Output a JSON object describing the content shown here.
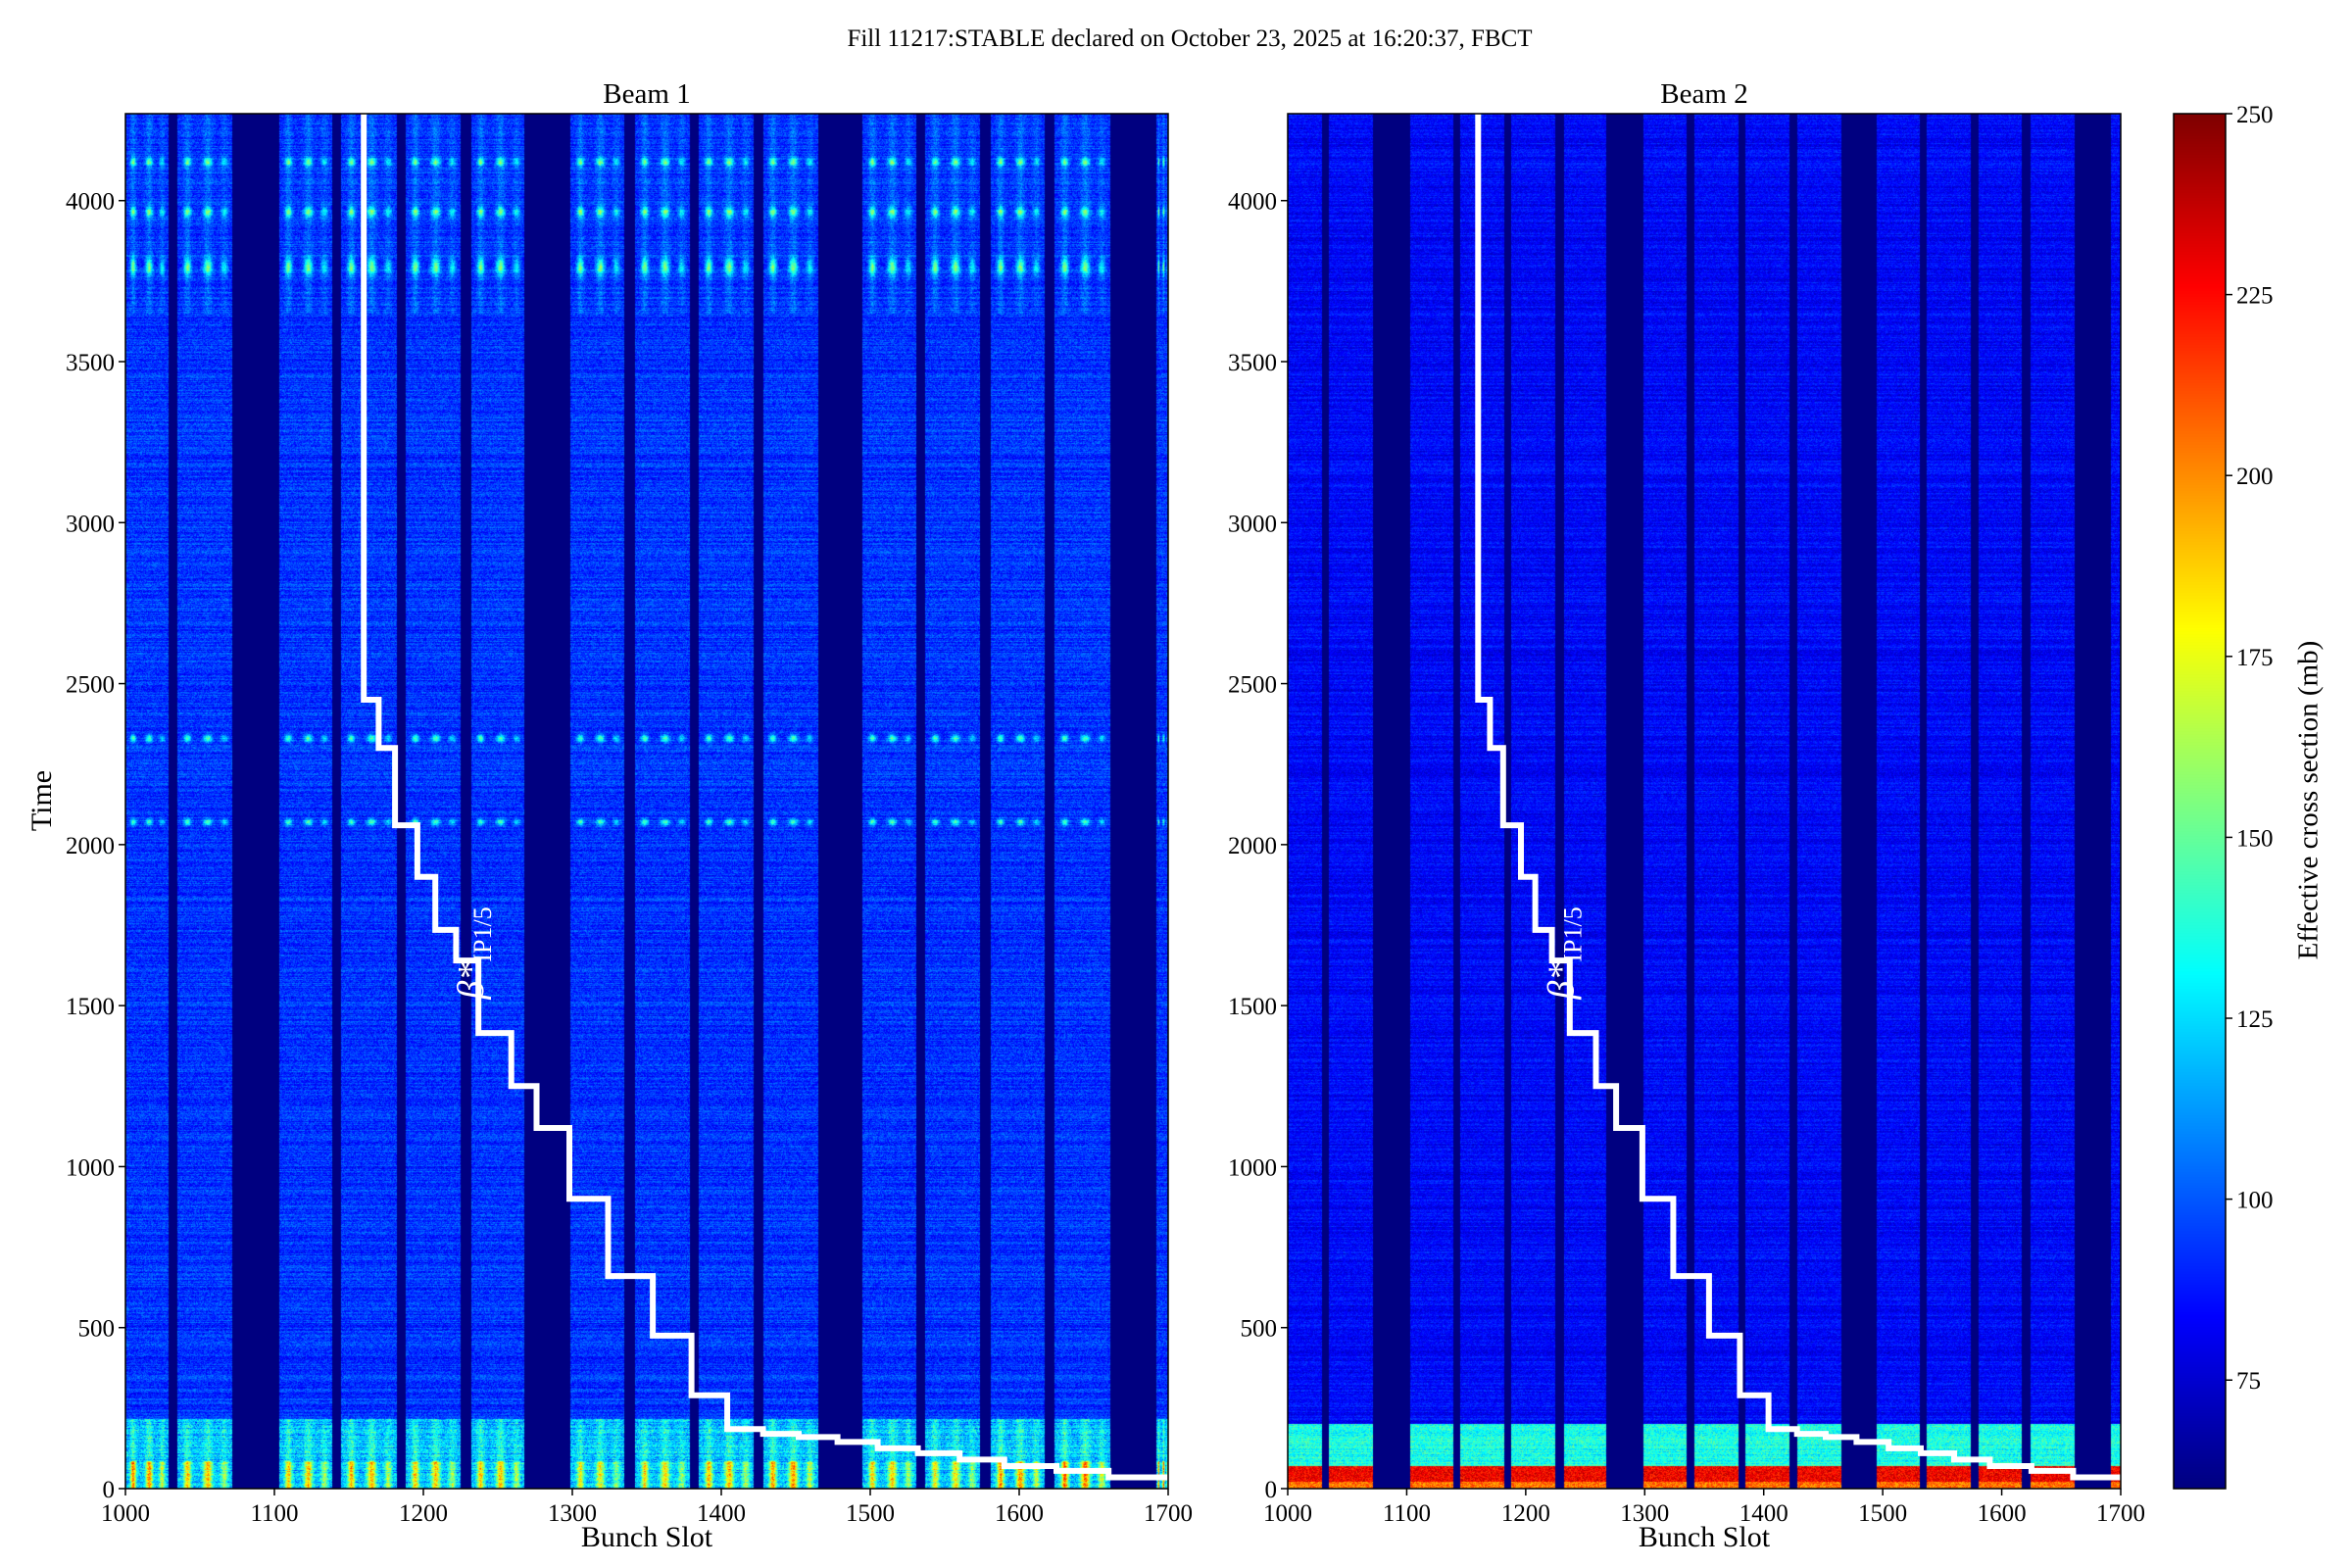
{
  "title": "Fill 11217:STABLE declared on October 23, 2025 at 16:20:37, FBCT",
  "chart_data": {
    "type": "heatmap",
    "panels": [
      {
        "title": "Beam 1",
        "xlabel": "Bunch Slot",
        "ylabel": "Time",
        "annotation": "β*",
        "annotation_sub": "IP1/5"
      },
      {
        "title": "Beam 2",
        "xlabel": "Bunch Slot",
        "ylabel": "",
        "annotation": "β*",
        "annotation_sub": "IP1/5"
      }
    ],
    "xlim": [
      1000,
      1700
    ],
    "ylim": [
      0,
      4270
    ],
    "xticks": [
      1000,
      1100,
      1200,
      1300,
      1400,
      1500,
      1600,
      1700
    ],
    "yticks": [
      0,
      500,
      1000,
      1500,
      2000,
      2500,
      3000,
      3500,
      4000
    ],
    "filled_bunch_trains": [
      [
        1000,
        1028
      ],
      [
        1035,
        1071
      ],
      [
        1103,
        1138
      ],
      [
        1145,
        1181
      ],
      [
        1188,
        1224
      ],
      [
        1232,
        1267
      ],
      [
        1299,
        1334
      ],
      [
        1342,
        1378
      ],
      [
        1385,
        1421
      ],
      [
        1428,
        1464
      ],
      [
        1495,
        1530
      ],
      [
        1537,
        1573
      ],
      [
        1581,
        1616
      ],
      [
        1624,
        1660
      ],
      [
        1692,
        1700
      ]
    ],
    "colorbar": {
      "label": "Effective cross section (mb)",
      "range": [
        60,
        250
      ],
      "ticks": [
        75,
        100,
        125,
        150,
        175,
        200,
        225,
        250
      ],
      "colormap": "jet"
    },
    "beta_star_step": {
      "x": [
        1160,
        1160,
        1170,
        1170,
        1181,
        1181,
        1196,
        1196,
        1208,
        1208,
        1222,
        1222,
        1237,
        1237,
        1259,
        1259,
        1276,
        1276,
        1298,
        1298,
        1324,
        1324,
        1354,
        1354,
        1380,
        1380,
        1404,
        1404,
        1428,
        1428,
        1452,
        1452,
        1478,
        1478,
        1505,
        1505,
        1532,
        1532,
        1560,
        1560,
        1590,
        1590,
        1625,
        1625,
        1660,
        1660,
        1700
      ],
      "y": [
        4270,
        2450,
        2450,
        2300,
        2300,
        2060,
        2060,
        1900,
        1900,
        1735,
        1735,
        1640,
        1640,
        1415,
        1415,
        1250,
        1250,
        1120,
        1120,
        900,
        900,
        660,
        660,
        475,
        475,
        290,
        290,
        185,
        185,
        170,
        170,
        160,
        160,
        145,
        145,
        125,
        125,
        110,
        110,
        90,
        90,
        70,
        70,
        55,
        55,
        35,
        35
      ]
    }
  }
}
